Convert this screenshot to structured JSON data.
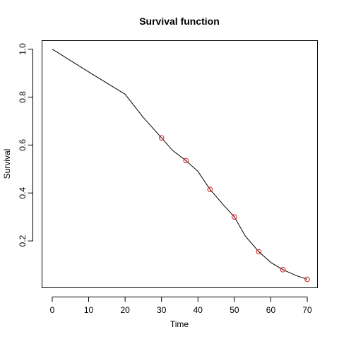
{
  "chart_data": {
    "type": "line",
    "title": "Survival function",
    "xlabel": "Time",
    "ylabel": "Survival",
    "xlim": [
      -2.8,
      72.8
    ],
    "ylim": [
      0.0044,
      1.0356
    ],
    "xticks": [
      0,
      10,
      20,
      30,
      40,
      50,
      60,
      70
    ],
    "yticks": [
      0.2,
      0.4,
      0.6,
      0.8,
      1.0
    ],
    "ytick_labels": [
      "0.2",
      "0.4",
      "0.6",
      "0.8",
      "1.0"
    ],
    "grid": false,
    "series": [
      {
        "kind": "curve",
        "color": "#000000",
        "x": [
          0,
          10,
          20,
          25,
          30,
          33,
          36.7,
          40,
          43.3,
          47,
          50,
          53,
          56.7,
          60,
          63.3,
          67,
          70
        ],
        "y": [
          1.0,
          0.905,
          0.812,
          0.715,
          0.63,
          0.578,
          0.535,
          0.49,
          0.415,
          0.35,
          0.3,
          0.22,
          0.155,
          0.11,
          0.08,
          0.055,
          0.04
        ]
      },
      {
        "kind": "points",
        "color": "#e31a1c",
        "x": [
          30,
          36.7,
          43.3,
          50,
          56.7,
          63.3,
          70
        ],
        "y": [
          0.63,
          0.535,
          0.415,
          0.3,
          0.155,
          0.08,
          0.04
        ]
      }
    ]
  }
}
